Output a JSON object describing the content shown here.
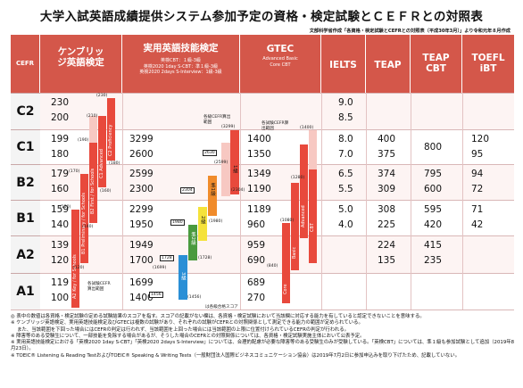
{
  "title": "大学入試英語成績提供システム参加予定の資格・検定試験とＣＥＦＲとの対照表",
  "subtitle": "文部科学省作成「各資格・検定試験とCEFRとの対照表（平成30年3月）」より令和元年８月作成",
  "header": {
    "cefr": "CEFR",
    "cambridge": "ケンブリッジ英語検定",
    "eiken_title": "実用英語技能検定",
    "eiken_sub1": "英検CBT：１級-3級",
    "eiken_sub2": "英検2020 1day S-CBT：準１級-3級",
    "eiken_sub3": "英検2020 2days S-Interview：1級-3級",
    "gtec_title": "GTEC",
    "gtec_sub": "Advanced Basic Core CBT",
    "ielts": "IELTS",
    "teap": "TEAP",
    "teapcbt_1": "TEAP",
    "teapcbt_2": "CBT",
    "toefl_1": "TOEFL",
    "toefl_2": "iBT"
  },
  "rows": [
    {
      "level": "C2",
      "cam": [
        "230",
        "200"
      ],
      "eiken": [
        "",
        ""
      ],
      "gtec": [
        "",
        ""
      ],
      "ielts": [
        "9.0",
        "8.5"
      ],
      "teap": [
        "",
        ""
      ],
      "teapcbt": [
        "",
        ""
      ],
      "toefl": [
        "",
        ""
      ]
    },
    {
      "level": "C1",
      "cam": [
        "199",
        "180"
      ],
      "eiken": [
        "3299",
        "2600"
      ],
      "gtec": [
        "1400",
        "1350"
      ],
      "ielts": [
        "8.0",
        "7.0"
      ],
      "teap": [
        "400",
        "375"
      ],
      "teapcbt": [
        "800",
        ""
      ],
      "toefl": [
        "120",
        "95"
      ]
    },
    {
      "level": "B2",
      "cam": [
        "179",
        "160"
      ],
      "eiken": [
        "2599",
        "2300"
      ],
      "gtec": [
        "1349",
        "1190"
      ],
      "ielts": [
        "6.5",
        "5.5"
      ],
      "teap": [
        "374",
        "309"
      ],
      "teapcbt": [
        "795",
        "600"
      ],
      "toefl": [
        "94",
        "72"
      ]
    },
    {
      "level": "B1",
      "cam": [
        "159",
        "140"
      ],
      "eiken": [
        "2299",
        "1950"
      ],
      "gtec": [
        "1189",
        "960"
      ],
      "ielts": [
        "5.0",
        "4.0"
      ],
      "teap": [
        "308",
        "225"
      ],
      "teapcbt": [
        "595",
        "420"
      ],
      "toefl": [
        "71",
        "42"
      ]
    },
    {
      "level": "A2",
      "cam": [
        "139",
        "120"
      ],
      "eiken": [
        "1949",
        "1700"
      ],
      "gtec": [
        "959",
        "690"
      ],
      "ielts": [
        "",
        ""
      ],
      "teap": [
        "224",
        "135"
      ],
      "teapcbt": [
        "415",
        "235"
      ],
      "toefl": [
        "",
        ""
      ]
    },
    {
      "level": "A1",
      "cam": [
        "119",
        "100"
      ],
      "eiken": [
        "1699",
        "1400"
      ],
      "gtec": [
        "689",
        "270"
      ],
      "ielts": [
        "",
        ""
      ],
      "teap": [
        "",
        ""
      ],
      "teapcbt": [
        "",
        ""
      ],
      "toefl": [
        "",
        ""
      ]
    }
  ],
  "cambridge_labels": [
    "C2 Proficiency",
    "C1 Advanced",
    "B2 First / for Schools",
    "B1 Preliminary / for Schools",
    "A2 Key / for Schools"
  ],
  "cambridge_marks": [
    "(230)",
    "(210)",
    "(190)",
    "(180)",
    "(170)",
    "(160)",
    "(150)",
    "(140)",
    "(120)"
  ],
  "cambridge_range_label": "各試験CEFR算出範囲",
  "eiken_grades": [
    "1級",
    "準1級",
    "2級",
    "準2級",
    "3級"
  ],
  "eiken_marks": [
    "(3299)",
    "2630",
    "(2599)",
    "(2304)",
    "2304",
    "1980",
    "(1980)",
    "1728",
    "(1728)",
    "(1699)",
    "1456",
    "(1456)"
  ],
  "eiken_range_label": "各級CEFR算出範囲",
  "eiken_footer_label": "は各級合格スコア",
  "gtec_marks": [
    "(1400)",
    "(1280)",
    "(1080)",
    "(840)"
  ],
  "gtec_range_label": "各試験CEFR算出範囲",
  "gtec_labels": [
    "Advanced",
    "Basic",
    "Core",
    "CBT"
  ],
  "notes": [
    "◎ 表中の数値は各資格・検定試験の定める試験結果のスコアを指す。スコアの記載がない欄は、各資格・検定試験において当該欄に対応する能力を有していると認定できないことを意味する。",
    "※ ケンブリッジ英語検定、実用英語技能検定及びGTECは複数の試験があり、それぞれの試験がCEFRとの対照関係として測定できる能力の範囲が定められている。",
    "　 また、当該範囲を下回った場合にはCEFRの判定は行われず、当該範囲を上回った場合には当該範囲の上限に位置付けられているCEFRの判定が行われる。",
    "※ 障害等のある受験生について、一部技能を免除する場合があるが、そうした場合のCEFRとの対照関係については、各資格・検定試験実施主体において公表予定。",
    "※ 実用英語技能検定における「英検2020 1day S-CBT」「英検2020 2days S-Interview」については、合理的配慮が必要な障害等のある受験生のみが受験している。「英検CBT」については、準１級も参加試験として追加（2019年8月23日）。",
    "※ TOEIC® Listening & Reading TestおよびTOEIC® Speaking & Writing Tests（一般財団法人国際ビジネスコミュニケーション協会）は2019年7月2日に参加申込みを取り下げたため、記載していない。"
  ]
}
